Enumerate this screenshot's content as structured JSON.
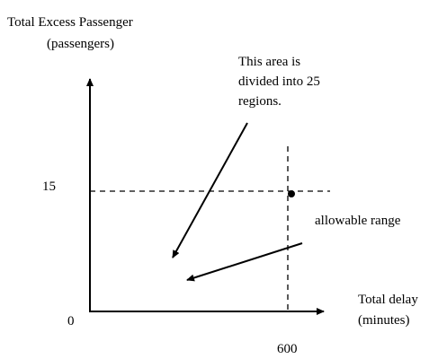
{
  "y_axis": {
    "title": "Total Excess Passenger",
    "unit": "(passengers)",
    "tick": "15"
  },
  "x_axis": {
    "title": "Total delay",
    "unit": "(minutes)",
    "tick": "600"
  },
  "origin": "0",
  "annotations": {
    "area_line1": "This area is",
    "area_line2": "divided into 25",
    "area_line3": "regions.",
    "range": "allowable range"
  }
}
